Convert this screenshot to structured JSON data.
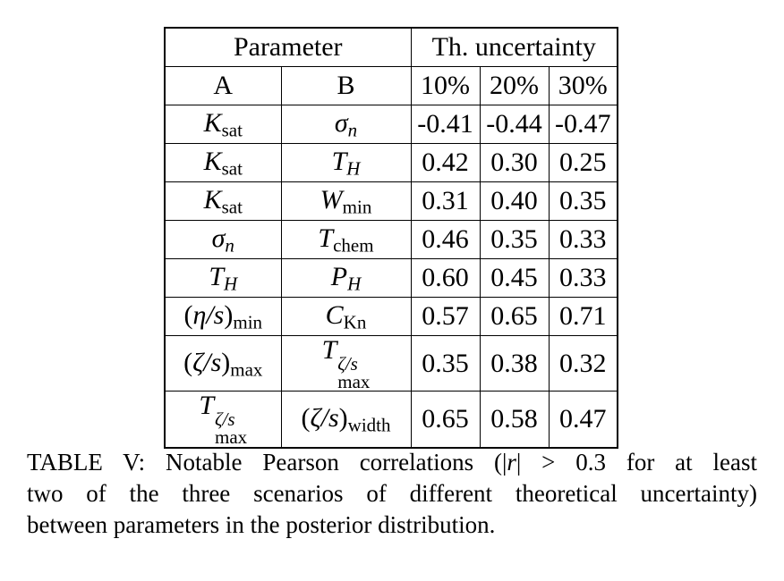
{
  "page": {
    "background": "#ffffff",
    "text_color": "#000000",
    "border_color": "#000000"
  },
  "table": {
    "header": {
      "parameter_label": "Parameter",
      "uncertainty_label": "Th. uncertainty",
      "col_a_label": "A",
      "col_b_label": "B",
      "percent_labels": [
        "10%",
        "20%",
        "30%"
      ]
    },
    "rows": [
      {
        "a": [
          {
            "t": "K",
            "s": "i"
          },
          {
            "t": "sat",
            "s": "sub"
          }
        ],
        "b": [
          {
            "t": "σ",
            "s": "i"
          },
          {
            "t": "n",
            "s": "isub"
          }
        ],
        "values": [
          "-0.41",
          "-0.44",
          "-0.47"
        ]
      },
      {
        "a": [
          {
            "t": "K",
            "s": "i"
          },
          {
            "t": "sat",
            "s": "sub"
          }
        ],
        "b": [
          {
            "t": "T",
            "s": "i"
          },
          {
            "t": "H",
            "s": "isub"
          }
        ],
        "values": [
          "0.42",
          "0.30",
          "0.25"
        ]
      },
      {
        "a": [
          {
            "t": "K",
            "s": "i"
          },
          {
            "t": "sat",
            "s": "sub"
          }
        ],
        "b": [
          {
            "t": "W",
            "s": "i"
          },
          {
            "t": "min",
            "s": "sub"
          }
        ],
        "values": [
          "0.31",
          "0.40",
          "0.35"
        ]
      },
      {
        "a": [
          {
            "t": "σ",
            "s": "i"
          },
          {
            "t": "n",
            "s": "isub"
          }
        ],
        "b": [
          {
            "t": "T",
            "s": "i"
          },
          {
            "t": "chem",
            "s": "sub"
          }
        ],
        "values": [
          "0.46",
          "0.35",
          "0.33"
        ]
      },
      {
        "a": [
          {
            "t": "T",
            "s": "i"
          },
          {
            "t": "H",
            "s": "isub"
          }
        ],
        "b": [
          {
            "t": "P",
            "s": "i"
          },
          {
            "t": "H",
            "s": "isub"
          }
        ],
        "values": [
          "0.60",
          "0.45",
          "0.33"
        ]
      },
      {
        "a": [
          {
            "t": "(",
            "s": "n"
          },
          {
            "t": "η/s",
            "s": "i"
          },
          {
            "t": ")",
            "s": "n"
          },
          {
            "t": "min",
            "s": "sub"
          }
        ],
        "b": [
          {
            "t": "C",
            "s": "i"
          },
          {
            "t": "Kn",
            "s": "sub"
          }
        ],
        "values": [
          "0.57",
          "0.65",
          "0.71"
        ]
      },
      {
        "a": [
          {
            "t": "(",
            "s": "n"
          },
          {
            "t": "ζ/s",
            "s": "i"
          },
          {
            "t": ")",
            "s": "n"
          },
          {
            "t": "max",
            "s": "sub"
          }
        ],
        "b": [
          {
            "t": "T",
            "s": "i"
          },
          {
            "s": "stack",
            "sup": "ζ/s",
            "sub": "max"
          }
        ],
        "values": [
          "0.35",
          "0.38",
          "0.32"
        ]
      },
      {
        "a": [
          {
            "t": "T",
            "s": "i"
          },
          {
            "s": "stack",
            "sup": "ζ/s",
            "sub": "max"
          }
        ],
        "b": [
          {
            "t": "(",
            "s": "n"
          },
          {
            "t": "ζ/s",
            "s": "i"
          },
          {
            "t": ")",
            "s": "n"
          },
          {
            "t": "width",
            "s": "sub"
          }
        ],
        "values": [
          "0.65",
          "0.58",
          "0.47"
        ]
      }
    ]
  },
  "caption": {
    "lines": [
      [
        {
          "t": "TABLE V: Notable Pearson correlations (|",
          "s": "n"
        },
        {
          "t": "r",
          "s": "i"
        },
        {
          "t": "| > 0.3 for at least",
          "s": "n"
        }
      ],
      [
        {
          "t": "two of the three scenarios of different theoretical uncertainty)",
          "s": "n"
        }
      ],
      [
        {
          "t": "between parameters in the posterior distribution.",
          "s": "n"
        }
      ]
    ]
  }
}
